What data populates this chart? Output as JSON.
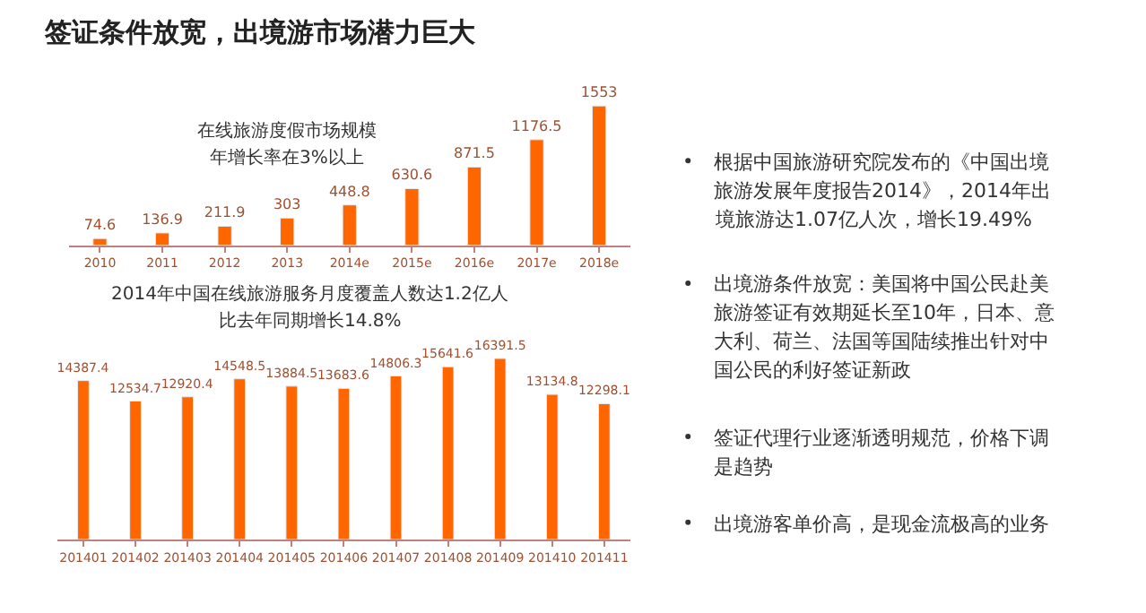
{
  "chart_data": [
    {
      "type": "bar",
      "title": "在线旅游度假市场规模年增长率在3%以上",
      "categories": [
        "2010",
        "2011",
        "2012",
        "2013",
        "2014e",
        "2015e",
        "2016e",
        "2017e",
        "2018e"
      ],
      "values": [
        74.6,
        136.9,
        211.9,
        303,
        448.8,
        630.6,
        871.5,
        1176.5,
        1553
      ],
      "color": "#ff6600",
      "data_labels": true
    },
    {
      "type": "bar",
      "title": "2014年中国在线旅游服务月度覆盖人数达1.2亿人比去年同期增长14.8%",
      "categories": [
        "201401",
        "201402",
        "201403",
        "201404",
        "201405",
        "201406",
        "201407",
        "201408",
        "201409",
        "201410",
        "201411"
      ],
      "values": [
        14387.4,
        12534.7,
        12920.4,
        14548.5,
        13884.5,
        13683.6,
        14806.3,
        15641.6,
        16391.5,
        13134.8,
        12298.1
      ],
      "color": "#ff6600",
      "data_labels": true
    },
    {
      "type": "other",
      "title": "签证条件放宽，出境游市场潜力巨大",
      "annotations": [
        "根据中国旅游研究院发布的《中国出境旅游发展年度报告2014》，2014年出境旅游达1.07亿人次，增长19.49%",
        "出境游条件放宽：美国将中国公民赴美旅游签证有效期延长至10年，日本、意大利、荷兰、法国等国陆续推出针对中国公民的利好签证新政",
        "签证代理行业逐渐透明规范，价格下调是趋势",
        "出境游客单价高，是现金流极高的业务"
      ]
    }
  ]
}
